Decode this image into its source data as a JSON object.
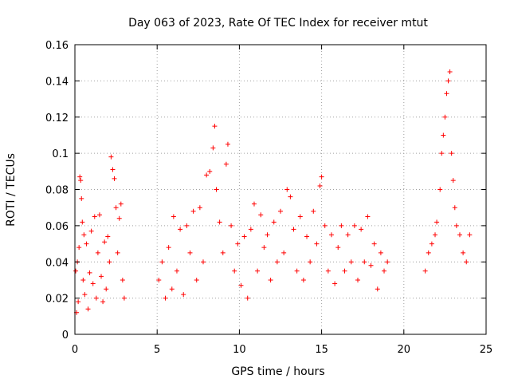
{
  "chart_data": {
    "type": "scatter",
    "title": "Day 063 of 2023, Rate Of TEC Index for receiver mtut",
    "xlabel": "GPS time / hours",
    "ylabel": "ROTI / TECUs",
    "xlim": [
      0,
      25
    ],
    "ylim": [
      0,
      0.16
    ],
    "grid": true,
    "marker": "plus",
    "x_ticks": [
      "0",
      "5",
      "10",
      "15",
      "20",
      "25"
    ],
    "y_ticks": [
      "0",
      "0.02",
      "0.04",
      "0.06",
      "0.08",
      "0.1",
      "0.12",
      "0.14",
      "0.16"
    ],
    "series": [
      {
        "color": "#ff0000",
        "points": [
          [
            0.05,
            0.035
          ],
          [
            0.1,
            0.012
          ],
          [
            0.15,
            0.04
          ],
          [
            0.2,
            0.018
          ],
          [
            0.25,
            0.048
          ],
          [
            0.3,
            0.087
          ],
          [
            0.35,
            0.085
          ],
          [
            0.4,
            0.075
          ],
          [
            0.45,
            0.062
          ],
          [
            0.5,
            0.03
          ],
          [
            0.55,
            0.055
          ],
          [
            0.6,
            0.022
          ],
          [
            0.7,
            0.05
          ],
          [
            0.8,
            0.014
          ],
          [
            0.9,
            0.034
          ],
          [
            1.0,
            0.057
          ],
          [
            1.1,
            0.028
          ],
          [
            1.2,
            0.065
          ],
          [
            1.3,
            0.02
          ],
          [
            1.4,
            0.045
          ],
          [
            1.5,
            0.066
          ],
          [
            1.6,
            0.032
          ],
          [
            1.7,
            0.018
          ],
          [
            1.8,
            0.051
          ],
          [
            1.9,
            0.025
          ],
          [
            2.0,
            0.054
          ],
          [
            2.1,
            0.04
          ],
          [
            2.2,
            0.098
          ],
          [
            2.3,
            0.091
          ],
          [
            2.4,
            0.086
          ],
          [
            2.5,
            0.07
          ],
          [
            2.6,
            0.045
          ],
          [
            2.7,
            0.064
          ],
          [
            2.8,
            0.072
          ],
          [
            2.9,
            0.03
          ],
          [
            3.0,
            0.02
          ],
          [
            5.1,
            0.03
          ],
          [
            5.3,
            0.04
          ],
          [
            5.5,
            0.02
          ],
          [
            5.7,
            0.048
          ],
          [
            5.9,
            0.025
          ],
          [
            6.0,
            0.065
          ],
          [
            6.2,
            0.035
          ],
          [
            6.4,
            0.058
          ],
          [
            6.6,
            0.022
          ],
          [
            6.8,
            0.06
          ],
          [
            7.0,
            0.045
          ],
          [
            7.2,
            0.068
          ],
          [
            7.4,
            0.03
          ],
          [
            7.6,
            0.07
          ],
          [
            7.8,
            0.04
          ],
          [
            8.0,
            0.088
          ],
          [
            8.2,
            0.09
          ],
          [
            8.4,
            0.103
          ],
          [
            8.5,
            0.115
          ],
          [
            8.6,
            0.08
          ],
          [
            8.8,
            0.062
          ],
          [
            9.0,
            0.045
          ],
          [
            9.2,
            0.094
          ],
          [
            9.3,
            0.105
          ],
          [
            9.5,
            0.06
          ],
          [
            9.7,
            0.035
          ],
          [
            9.9,
            0.05
          ],
          [
            10.1,
            0.027
          ],
          [
            10.3,
            0.054
          ],
          [
            10.5,
            0.02
          ],
          [
            10.7,
            0.058
          ],
          [
            10.9,
            0.072
          ],
          [
            11.1,
            0.035
          ],
          [
            11.3,
            0.066
          ],
          [
            11.5,
            0.048
          ],
          [
            11.7,
            0.055
          ],
          [
            11.9,
            0.03
          ],
          [
            12.1,
            0.062
          ],
          [
            12.3,
            0.04
          ],
          [
            12.5,
            0.068
          ],
          [
            12.7,
            0.045
          ],
          [
            12.9,
            0.08
          ],
          [
            13.1,
            0.076
          ],
          [
            13.3,
            0.058
          ],
          [
            13.5,
            0.035
          ],
          [
            13.7,
            0.065
          ],
          [
            13.9,
            0.03
          ],
          [
            14.1,
            0.054
          ],
          [
            14.3,
            0.04
          ],
          [
            14.5,
            0.068
          ],
          [
            14.7,
            0.05
          ],
          [
            14.9,
            0.082
          ],
          [
            15.0,
            0.087
          ],
          [
            15.2,
            0.06
          ],
          [
            15.4,
            0.035
          ],
          [
            15.6,
            0.055
          ],
          [
            15.8,
            0.028
          ],
          [
            16.0,
            0.048
          ],
          [
            16.2,
            0.06
          ],
          [
            16.4,
            0.035
          ],
          [
            16.6,
            0.055
          ],
          [
            16.8,
            0.04
          ],
          [
            17.0,
            0.06
          ],
          [
            17.2,
            0.03
          ],
          [
            17.4,
            0.058
          ],
          [
            17.6,
            0.04
          ],
          [
            17.8,
            0.065
          ],
          [
            18.0,
            0.038
          ],
          [
            18.2,
            0.05
          ],
          [
            18.4,
            0.025
          ],
          [
            18.6,
            0.045
          ],
          [
            18.8,
            0.035
          ],
          [
            19.0,
            0.04
          ],
          [
            21.3,
            0.035
          ],
          [
            21.5,
            0.045
          ],
          [
            21.7,
            0.05
          ],
          [
            21.9,
            0.055
          ],
          [
            22.0,
            0.062
          ],
          [
            22.2,
            0.08
          ],
          [
            22.3,
            0.1
          ],
          [
            22.4,
            0.11
          ],
          [
            22.5,
            0.12
          ],
          [
            22.6,
            0.133
          ],
          [
            22.7,
            0.14
          ],
          [
            22.8,
            0.145
          ],
          [
            22.9,
            0.1
          ],
          [
            23.0,
            0.085
          ],
          [
            23.1,
            0.07
          ],
          [
            23.2,
            0.06
          ],
          [
            23.4,
            0.055
          ],
          [
            23.6,
            0.045
          ],
          [
            23.8,
            0.04
          ],
          [
            24.0,
            0.055
          ]
        ]
      }
    ]
  }
}
